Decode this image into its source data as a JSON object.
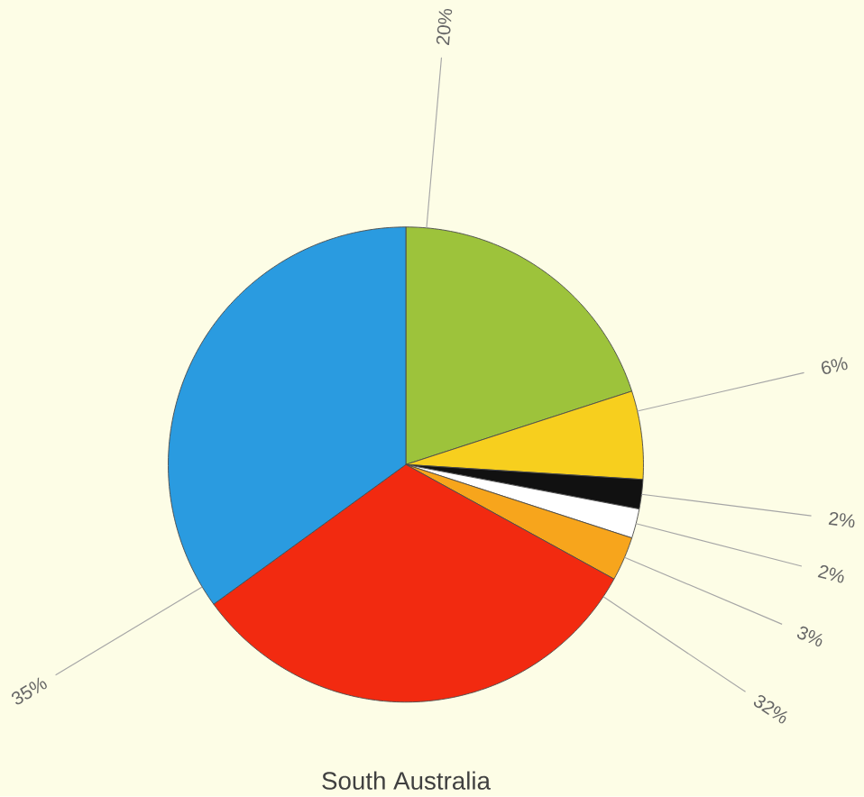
{
  "chart_data": {
    "type": "pie",
    "title": "South Australia",
    "categories": [
      null,
      null,
      null,
      null,
      null,
      null,
      null
    ],
    "values": [
      20,
      6,
      2,
      2,
      3,
      32,
      35
    ],
    "colors": [
      "#9dc33b",
      "#f7cf1e",
      "#111111",
      "#ffffff",
      "#f7a51c",
      "#f22a10",
      "#2a9be0"
    ],
    "value_labels": [
      "20%",
      "6%",
      "2%",
      "2%",
      "3%",
      "32%",
      "35%"
    ]
  }
}
